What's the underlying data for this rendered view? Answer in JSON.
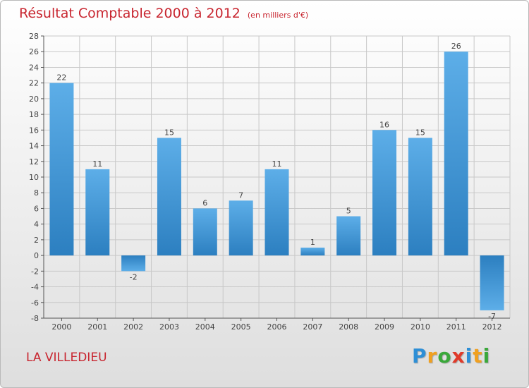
{
  "title": "Résultat Comptable 2000 à 2012",
  "unit": "(en milliers d'€)",
  "location": "LA VILLEDIEU",
  "logo": {
    "letters": [
      {
        "ch": "P",
        "color": "#2e8fd6"
      },
      {
        "ch": "r",
        "color": "#f0a020"
      },
      {
        "ch": "o",
        "color": "#3aa83a"
      },
      {
        "ch": "x",
        "color": "#e03a2a"
      },
      {
        "ch": "i",
        "color": "#2e8fd6"
      },
      {
        "ch": "t",
        "color": "#f0a020"
      },
      {
        "ch": "i",
        "color": "#3aa83a"
      }
    ]
  },
  "chart_data": {
    "type": "bar",
    "title": "Résultat Comptable 2000 à 2012",
    "ylabel": "(en milliers d'€)",
    "xlabel": "",
    "categories": [
      "2000",
      "2001",
      "2002",
      "2003",
      "2004",
      "2005",
      "2006",
      "2007",
      "2008",
      "2009",
      "2010",
      "2011",
      "2012"
    ],
    "values": [
      22,
      11,
      -2,
      15,
      6,
      7,
      11,
      1,
      5,
      16,
      15,
      26,
      -7
    ],
    "ylim": [
      -8,
      28
    ],
    "ytick_step": 2,
    "grid": true,
    "colors": {
      "bar_light": "#5daee8",
      "bar_dark": "#2c7fc0",
      "grid": "#c8c8c8"
    }
  }
}
